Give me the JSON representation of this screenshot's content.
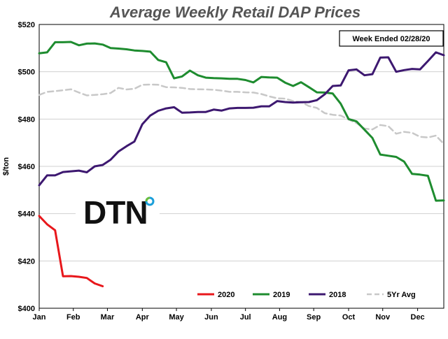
{
  "chart_data": {
    "type": "line",
    "title": "Average Weekly Retail DAP Prices",
    "annotation": "Week Ended 02/28/20",
    "ylabel": "$/ton",
    "xlabel": "",
    "ylim": [
      400,
      520
    ],
    "yticks": [
      "$400",
      "$420",
      "$440",
      "$460",
      "$480",
      "$500",
      "$520"
    ],
    "ytick_values": [
      400,
      420,
      440,
      460,
      480,
      500,
      520
    ],
    "xlim": [
      0,
      51
    ],
    "months": [
      "Jan",
      "Feb",
      "Mar",
      "Apr",
      "May",
      "Jun",
      "Jul",
      "Aug",
      "Sep",
      "Oct",
      "Nov",
      "Dec"
    ],
    "month_weeks": [
      0,
      4.3,
      8.6,
      13,
      17.3,
      21.7,
      26,
      30.3,
      34.6,
      39,
      43.3,
      47.7
    ],
    "grid": true,
    "legend_position": "bottom-right",
    "logo_text": "DTN",
    "series": [
      {
        "name": "2020",
        "color": "#e8171b",
        "dashed": false,
        "x": [
          0,
          1,
          2,
          3,
          4,
          5,
          6,
          7,
          8
        ],
        "y": [
          439,
          435.5,
          433,
          413.5,
          413.6,
          413.3,
          412.8,
          410.5,
          409.3
        ]
      },
      {
        "name": "2019",
        "color": "#1e8c2f",
        "dashed": false,
        "x": [
          0,
          1,
          2,
          3,
          4,
          5,
          6,
          7,
          8,
          9,
          10,
          11,
          12,
          13,
          14,
          15,
          16,
          17,
          18,
          19,
          20,
          21,
          22,
          23,
          24,
          25,
          26,
          27,
          28,
          29,
          30,
          31,
          32,
          33,
          34,
          35,
          36,
          37,
          38,
          39,
          40,
          41,
          42,
          43,
          44,
          45,
          46,
          47,
          48,
          49,
          50,
          51
        ],
        "y": [
          507.8,
          508.2,
          512.5,
          512.5,
          512.6,
          511.2,
          511.9,
          512,
          511.5,
          510,
          509.8,
          509.5,
          509,
          508.8,
          508.5,
          505,
          504,
          497.2,
          498,
          500.5,
          498.5,
          497.5,
          497.3,
          497.2,
          497,
          497,
          496.5,
          495.5,
          497.8,
          497.6,
          497.5,
          495.4,
          494,
          495.6,
          493.5,
          491.3,
          491.2,
          490.8,
          486.5,
          480,
          479,
          475.5,
          472,
          465,
          464.5,
          464,
          462,
          456.8,
          456.5,
          456,
          445.5,
          445.6
        ]
      },
      {
        "name": "2018",
        "color": "#3d1870",
        "dashed": false,
        "x": [
          0,
          1,
          2,
          3,
          4,
          5,
          6,
          7,
          8,
          9,
          10,
          11,
          12,
          13,
          14,
          15,
          16,
          17,
          18,
          19,
          20,
          21,
          22,
          23,
          24,
          25,
          26,
          27,
          28,
          29,
          30,
          31,
          32,
          33,
          34,
          35,
          36,
          37,
          38,
          39,
          40,
          41,
          42,
          43,
          44,
          45,
          46,
          47,
          48,
          49,
          50,
          51
        ],
        "y": [
          452,
          456.2,
          456.2,
          457.6,
          457.9,
          458.2,
          457.5,
          460,
          460.6,
          462.8,
          466.3,
          468.5,
          470.5,
          477.8,
          481.5,
          483.5,
          484.5,
          485,
          482.7,
          482.8,
          483,
          483,
          484,
          483.6,
          484.5,
          484.7,
          484.7,
          484.8,
          485.4,
          485.4,
          487.6,
          487.2,
          487,
          487.1,
          487.2,
          488,
          490.5,
          494,
          494.2,
          500.6,
          501,
          498.5,
          499,
          506,
          506.1,
          500,
          500.7,
          501.2,
          501,
          504.5,
          508.2,
          507
        ]
      },
      {
        "name": "5Yr Avg",
        "color": "#c8c8c8",
        "dashed": true,
        "x": [
          0,
          1,
          2,
          3,
          4,
          5,
          6,
          7,
          8,
          9,
          10,
          11,
          12,
          13,
          14,
          15,
          16,
          17,
          18,
          19,
          20,
          21,
          22,
          23,
          24,
          25,
          26,
          27,
          28,
          29,
          30,
          31,
          32,
          33,
          34,
          35,
          36,
          37,
          38,
          39,
          40,
          41,
          42,
          43,
          44,
          45,
          46,
          47,
          48,
          49,
          50,
          51
        ],
        "y": [
          490.2,
          491.5,
          491.8,
          492.2,
          492.6,
          491.2,
          490,
          490.2,
          490.5,
          491,
          493.2,
          492.5,
          492.8,
          494.5,
          494.6,
          494.5,
          493.5,
          493.4,
          493.2,
          492.7,
          492.6,
          492.5,
          492.4,
          492,
          491.5,
          491.5,
          491.3,
          491.2,
          490.6,
          489.6,
          488.8,
          488.6,
          487.6,
          487.2,
          485.5,
          484.7,
          482.5,
          481.8,
          481.5,
          479.8,
          478.3,
          476,
          475.6,
          477.5,
          477,
          473.8,
          474.6,
          474.2,
          472.5,
          472.2,
          473,
          469.5
        ]
      }
    ]
  }
}
